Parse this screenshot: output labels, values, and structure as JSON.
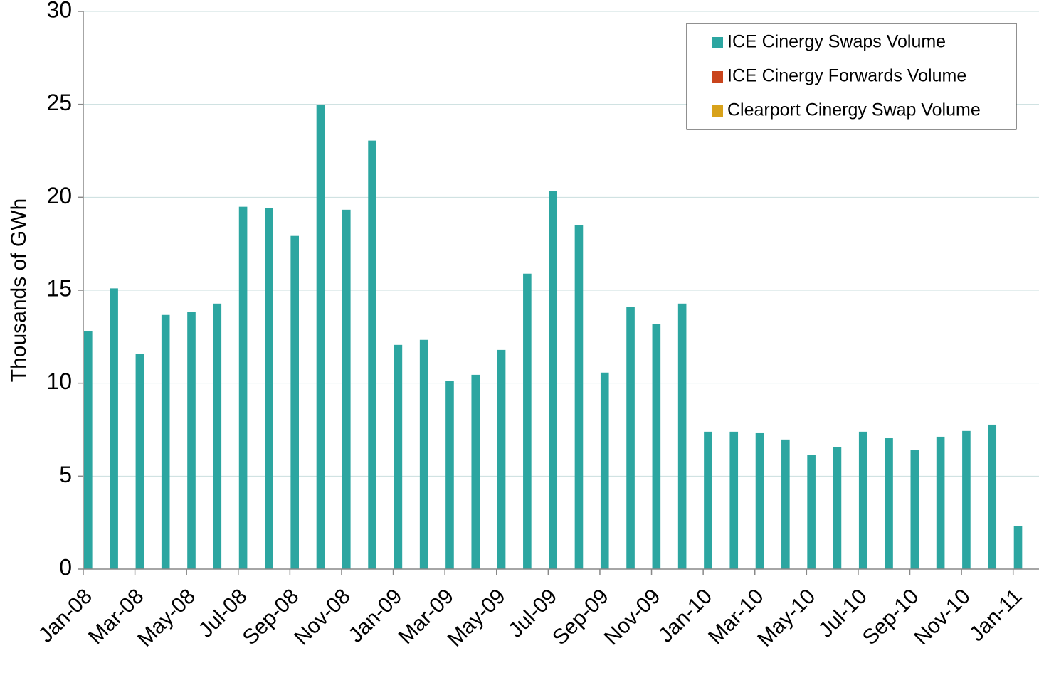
{
  "chart_data": {
    "type": "bar",
    "y_label": "Thousands of GWh",
    "categories": [
      "Jan-08",
      null,
      "Mar-08",
      null,
      "May-08",
      null,
      "Jul-08",
      null,
      "Sep-08",
      null,
      "Nov-08",
      null,
      "Jan-09",
      null,
      "Mar-09",
      null,
      "May-09",
      null,
      "Jul-09",
      null,
      "Sep-09",
      null,
      "Nov-09",
      null,
      "Jan-10",
      null,
      "Mar-10",
      null,
      "May-10",
      null,
      "Jul-10",
      null,
      "Sep-10",
      null,
      "Nov-10",
      null,
      "Jan-11"
    ],
    "series": [
      {
        "name": "ICE Cinergy Swaps Volume",
        "color": "#2ca6a1",
        "values": [
          12.78,
          15.1,
          11.57,
          13.67,
          13.82,
          14.28,
          19.49,
          19.41,
          17.92,
          24.96,
          19.33,
          23.05,
          12.06,
          12.33,
          10.11,
          10.45,
          11.79,
          15.89,
          20.33,
          18.49,
          10.57,
          14.09,
          13.17,
          14.28,
          7.39,
          7.39,
          7.31,
          6.97,
          6.13,
          6.55,
          7.39,
          7.04,
          6.39,
          7.12,
          7.43,
          7.77,
          2.3
        ]
      },
      {
        "name": "ICE Cinergy Forwards Volume",
        "color": "#c9441c",
        "values": [
          0,
          0,
          0,
          0,
          0,
          0,
          0,
          0,
          0,
          0,
          0,
          0,
          0,
          0,
          0,
          0,
          0,
          0,
          0,
          0,
          0,
          0,
          0,
          0,
          0,
          0,
          0,
          0,
          0,
          0,
          0,
          0,
          0,
          0,
          0,
          0,
          0
        ]
      },
      {
        "name": "Clearport Cinergy Swap Volume",
        "color": "#d8a21a",
        "values": [
          0,
          0,
          0,
          0,
          0,
          0,
          0,
          0,
          0,
          0,
          0,
          0,
          0,
          0,
          0,
          0,
          0,
          0,
          0,
          0,
          0,
          0,
          0,
          0,
          0,
          0,
          0,
          0,
          0,
          0,
          0,
          0,
          0,
          0,
          0,
          0,
          0
        ]
      }
    ],
    "stacked": true,
    "ylim": [
      0,
      30
    ],
    "yticks": [
      0,
      5,
      10,
      15,
      20,
      25,
      30
    ],
    "grid": true,
    "legend": "top-right"
  }
}
